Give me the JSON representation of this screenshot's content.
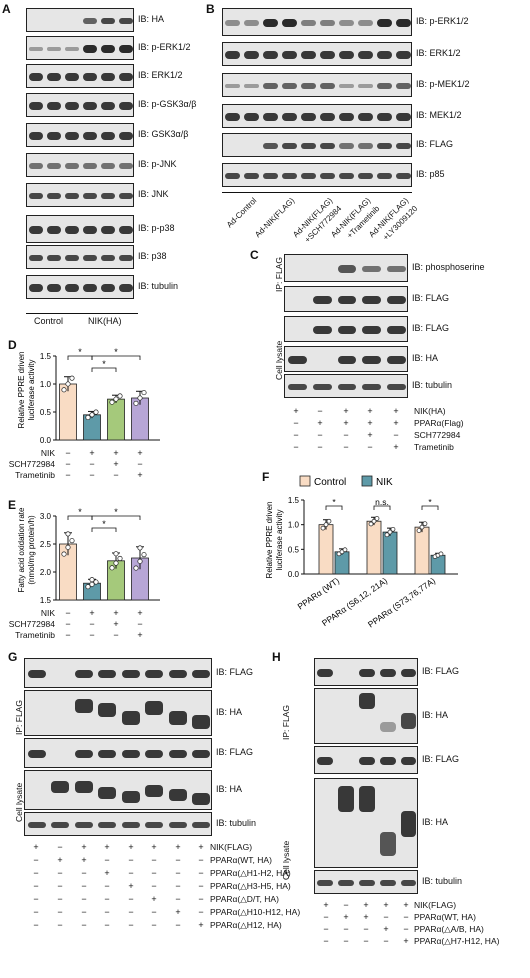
{
  "panels": {
    "a": "A",
    "b": "B",
    "c": "C",
    "d": "D",
    "e": "E",
    "f": "F",
    "g": "G",
    "h": "H"
  },
  "panelA": {
    "blots": [
      "IB: HA",
      "IB: p-ERK1/2",
      "IB: ERK1/2",
      "IB: p-GSK3α/β",
      "IB: GSK3α/β",
      "IB: p-JNK",
      "IB: JNK",
      "IB: p-p38",
      "IB: p38",
      "IB: tubulin"
    ],
    "groups": [
      "Control",
      "NIK(HA)"
    ]
  },
  "panelB": {
    "blots": [
      "IB: p-ERK1/2",
      "IB: ERK1/2",
      "IB: p-MEK1/2",
      "IB: MEK1/2",
      "IB: FLAG",
      "IB: p85"
    ],
    "conditions": [
      "Ad-Control",
      "Ad-NIK(FLAG)",
      "Ad-NIK(FLAG)\n+SCH772984",
      "Ad-NIK(FLAG)\n+Trametinib",
      "Ad-NIK(FLAG)\n+LY3009120"
    ]
  },
  "panelC": {
    "ip_label": "IP: FLAG",
    "lysate_label": "Cell lysate",
    "blots": [
      "IB: phosphoserine",
      "IB: FLAG",
      "IB: FLAG",
      "IB: HA",
      "IB: tubulin"
    ],
    "rows": [
      {
        "label": "NIK(HA)",
        "marks": [
          "+",
          "−",
          "+",
          "+",
          "+"
        ]
      },
      {
        "label": "PPARα(Flag)",
        "marks": [
          "−",
          "+",
          "+",
          "+",
          "+"
        ]
      },
      {
        "label": "SCH772984",
        "marks": [
          "−",
          "−",
          "−",
          "+",
          "−"
        ]
      },
      {
        "label": "Trametinib",
        "marks": [
          "−",
          "−",
          "−",
          "−",
          "+"
        ]
      }
    ]
  },
  "panelD": {
    "ylabel": "Relative PPRE driven\nluciferase activity",
    "rows": [
      {
        "label": "NIK",
        "marks": [
          "−",
          "+",
          "+",
          "+"
        ]
      },
      {
        "label": "SCH772984",
        "marks": [
          "−",
          "−",
          "+",
          "−"
        ]
      },
      {
        "label": "Trametinib",
        "marks": [
          "−",
          "−",
          "−",
          "+"
        ]
      }
    ],
    "sig": [
      "*",
      "*",
      "*"
    ]
  },
  "panelE": {
    "ylabel": "Fatty acid oxidation rate\n(nmol/mg protein/h)",
    "rows": [
      {
        "label": "NIK",
        "marks": [
          "−",
          "+",
          "+",
          "+"
        ]
      },
      {
        "label": "SCH772984",
        "marks": [
          "−",
          "−",
          "+",
          "−"
        ]
      },
      {
        "label": "Trametinib",
        "marks": [
          "−",
          "−",
          "−",
          "+"
        ]
      }
    ],
    "sig": [
      "*",
      "*",
      "*"
    ]
  },
  "panelF": {
    "ylabel": "Relative PPRE driven\nluciferase activity",
    "legend": [
      "Control",
      "NIK"
    ],
    "sig": [
      "*",
      "n.s.",
      "*"
    ]
  },
  "panelG": {
    "ip_label": "IP: FLAG",
    "lysate_label": "Cell lysate",
    "blots": [
      "IB: FLAG",
      "IB: HA",
      "IB: FLAG",
      "IB: HA",
      "IB: tubulin"
    ],
    "rows": [
      {
        "label": "NIK(FLAG)",
        "marks": [
          "+",
          "−",
          "+",
          "+",
          "+",
          "+",
          "+",
          "+"
        ]
      },
      {
        "label": "PPARα(WT, HA)",
        "marks": [
          "−",
          "+",
          "+",
          "−",
          "−",
          "−",
          "−",
          "−"
        ]
      },
      {
        "label": "PPARα(△H1-H2, HA)",
        "marks": [
          "−",
          "−",
          "−",
          "+",
          "−",
          "−",
          "−",
          "−"
        ]
      },
      {
        "label": "PPARα(△H3-H5, HA)",
        "marks": [
          "−",
          "−",
          "−",
          "−",
          "+",
          "−",
          "−",
          "−"
        ]
      },
      {
        "label": "PPARα(△D/T, HA)",
        "marks": [
          "−",
          "−",
          "−",
          "−",
          "−",
          "+",
          "−",
          "−"
        ]
      },
      {
        "label": "PPARα(△H10-H12, HA)",
        "marks": [
          "−",
          "−",
          "−",
          "−",
          "−",
          "−",
          "+",
          "−"
        ]
      },
      {
        "label": "PPARα(△H12, HA)",
        "marks": [
          "−",
          "−",
          "−",
          "−",
          "−",
          "−",
          "−",
          "+"
        ]
      }
    ]
  },
  "panelH": {
    "ip_label": "IP: FLAG",
    "lysate_label": "Cell lysate",
    "blots": [
      "IB: FLAG",
      "IB: HA",
      "IB: FLAG",
      "IB: HA",
      "IB: tubulin"
    ],
    "rows": [
      {
        "label": "NIK(FLAG)",
        "marks": [
          "+",
          "−",
          "+",
          "+",
          "+"
        ]
      },
      {
        "label": "PPARα(WT, HA)",
        "marks": [
          "−",
          "+",
          "+",
          "−",
          "−"
        ]
      },
      {
        "label": "PPARα(△A/B, HA)",
        "marks": [
          "−",
          "−",
          "−",
          "+",
          "−"
        ]
      },
      {
        "label": "PPARα(△H7-H12, HA)",
        "marks": [
          "−",
          "−",
          "−",
          "−",
          "+"
        ]
      }
    ]
  },
  "chart_data": [
    {
      "id": "D",
      "type": "bar",
      "categories": [
        "1",
        "2",
        "3",
        "4"
      ],
      "values": [
        1.0,
        0.45,
        0.73,
        0.75
      ],
      "errors": [
        0.13,
        0.06,
        0.07,
        0.12
      ],
      "ylim": [
        0,
        1.5
      ],
      "yticks": [
        "0.0",
        "0.5",
        "1.0",
        "1.5"
      ],
      "ylabel": "Relative PPRE driven luciferase activity",
      "colors": [
        "#f9dcc4",
        "#5e9aa8",
        "#a5c97b",
        "#b7a6d6"
      ]
    },
    {
      "id": "E",
      "type": "bar",
      "categories": [
        "1",
        "2",
        "3",
        "4"
      ],
      "values": [
        2.5,
        1.8,
        2.2,
        2.25
      ],
      "errors": [
        0.2,
        0.07,
        0.14,
        0.2
      ],
      "ylim": [
        1.5,
        3.0
      ],
      "yticks": [
        "1.5",
        "2.0",
        "2.5",
        "3.0"
      ],
      "ylabel": "Fatty acid oxidation rate (nmol/mg protein/h)",
      "colors": [
        "#f9dcc4",
        "#5e9aa8",
        "#a5c97b",
        "#b7a6d6"
      ]
    },
    {
      "id": "F",
      "type": "bar",
      "categories": [
        "PPARα (WT)",
        "PPARα (S6,12, 21A)",
        "PPARα (S73,76,77A)"
      ],
      "series": [
        {
          "name": "Control",
          "values": [
            1.0,
            1.07,
            0.95
          ],
          "errors": [
            0.1,
            0.08,
            0.1
          ]
        },
        {
          "name": "NIK",
          "values": [
            0.45,
            0.85,
            0.38
          ],
          "errors": [
            0.06,
            0.08,
            0.04
          ]
        }
      ],
      "ylim": [
        0,
        1.5
      ],
      "yticks": [
        "0.0",
        "0.5",
        "1.0",
        "1.5"
      ],
      "ylabel": "Relative PPRE driven luciferase activity",
      "colors": [
        "#f9dcc4",
        "#5e9aa8"
      ]
    }
  ]
}
